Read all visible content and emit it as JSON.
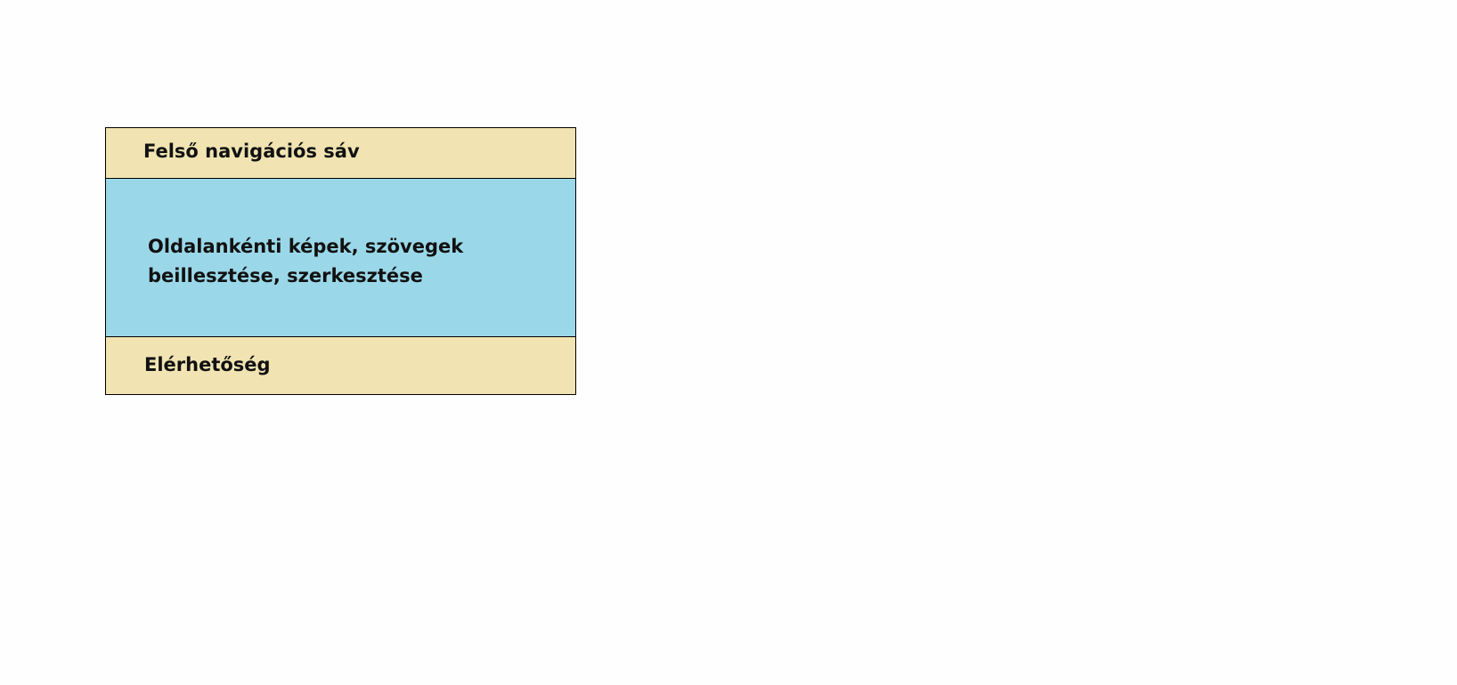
{
  "colors": {
    "header_fill": "#f1e4b2",
    "content_fill": "#9ad8e9",
    "footer_fill": "#f1e4b2",
    "border": "#000000",
    "background": "#fefefe"
  },
  "wireframe": {
    "header_label": "Felső navigációs sáv",
    "content_label": "Oldalankénti képek, szövegek beillesztése, szerkesztése",
    "footer_label": "Elérhetőség"
  }
}
